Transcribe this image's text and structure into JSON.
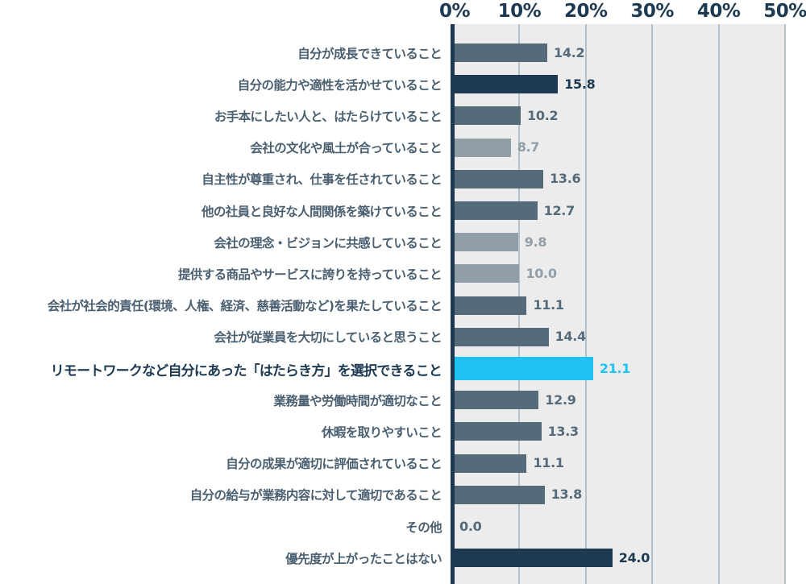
{
  "chart_data": {
    "type": "bar",
    "orientation": "horizontal",
    "title": "",
    "xlabel": "",
    "ylabel": "",
    "xlim": [
      0,
      50
    ],
    "ticks": [
      "0%",
      "10%",
      "20%",
      "30%",
      "40%",
      "50%"
    ],
    "tick_values": [
      0,
      10,
      20,
      30,
      40,
      50
    ],
    "grid": true,
    "legend": null,
    "categories": [
      "自分が成長できていること",
      "自分の能力や適性を活かせていること",
      "お手本にしたい人と、はたらけていること",
      "会社の文化や風土が合っていること",
      "自主性が尊重され、仕事を任されていること",
      "他の社員と良好な人間関係を築けていること",
      "会社の理念・ビジョンに共感していること",
      "提供する商品やサービスに誇りを持っていること",
      "会社が社会的責任（環境、人権、経済、慈善活動など）を果たしていること",
      "会社が従業員を大切にしていると思うこと",
      "リモートワークなど自分にあった「はたらき方」を選択できること",
      "業務量や労働時間が適切なこと",
      "休暇を取りやすいこと",
      "自分の成果が適切に評価されていること",
      "自分の給与が業務内容に対して適切であること",
      "その他",
      "優先度が上がったことはない"
    ],
    "values": [
      14.2,
      15.8,
      10.2,
      8.7,
      13.6,
      12.7,
      9.8,
      10.0,
      11.1,
      14.4,
      21.1,
      12.9,
      13.3,
      11.1,
      13.8,
      0.0,
      24.0
    ],
    "value_labels": [
      "14.2",
      "15.8",
      "10.2",
      "8.7",
      "13.6",
      "12.7",
      "9.8",
      "10.0",
      "11.1",
      "14.4",
      "21.1",
      "12.9",
      "13.3",
      "11.1",
      "13.8",
      "0.0",
      "24.0"
    ],
    "bar_styles": [
      "mid",
      "dark",
      "mid",
      "light",
      "mid",
      "mid",
      "light",
      "light",
      "mid",
      "mid",
      "highlight",
      "mid",
      "mid",
      "mid",
      "mid",
      "mid",
      "dark"
    ],
    "highlighted_index": 10
  },
  "colors": {
    "dark": "#1e3a52",
    "mid": "#566b7a",
    "light": "#909ea8",
    "highlight": "#1ec3f3",
    "axis": "#1e3a52",
    "grid": "#b7c0c7",
    "plot_bg": "#ececec",
    "label": "#4a5f70"
  }
}
